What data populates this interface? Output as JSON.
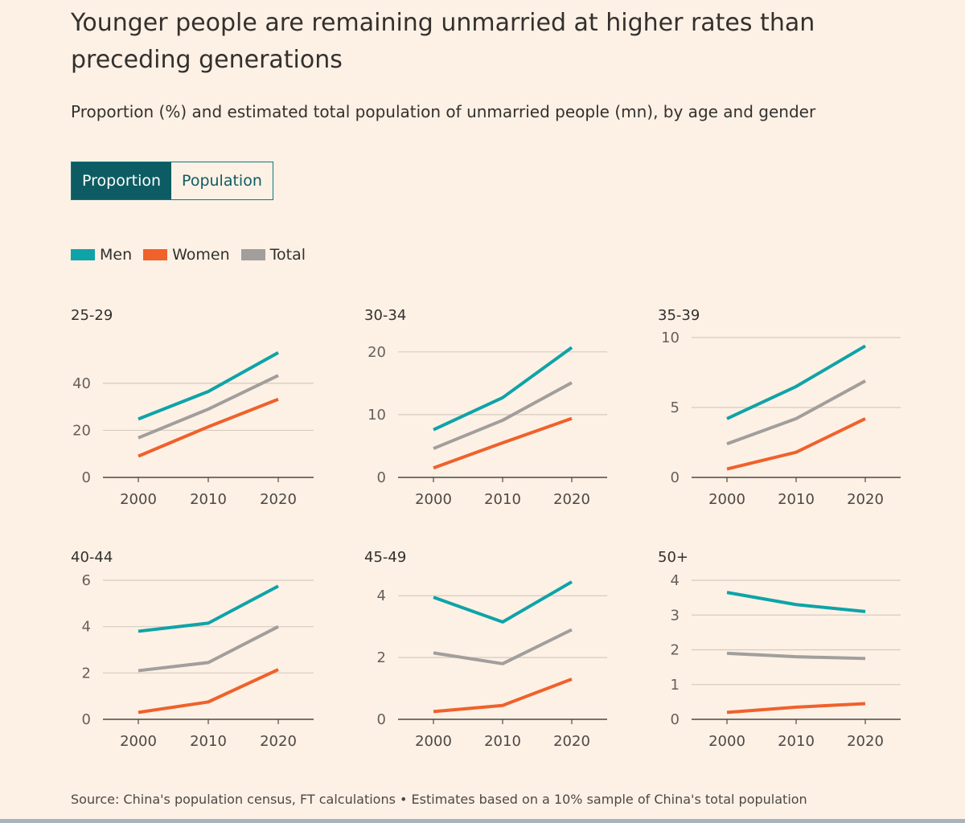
{
  "title": "Younger people are remaining unmarried at higher rates than preceding generations",
  "subtitle": "Proportion (%) and estimated total population of unmarried people (mn), by age and gender",
  "toggle": {
    "active": "Proportion",
    "options": [
      "Proportion",
      "Population"
    ]
  },
  "legend": [
    {
      "label": "Men",
      "color": "#0fa3a8"
    },
    {
      "label": "Women",
      "color": "#f0612b"
    },
    {
      "label": "Total",
      "color": "#a19e9c"
    }
  ],
  "source": "Source: China's population census, FT calculations • Estimates based on a 10% sample of China's total population",
  "chart_data": [
    {
      "type": "line",
      "title": "25-29",
      "x": [
        "2000",
        "2010",
        "2020"
      ],
      "ylim": [
        0,
        56
      ],
      "yticks": [
        0,
        20,
        40
      ],
      "series": [
        {
          "name": "Men",
          "values": [
            24.8,
            36.5,
            53
          ]
        },
        {
          "name": "Women",
          "values": [
            9,
            21.5,
            33.2
          ]
        },
        {
          "name": "Total",
          "values": [
            16.8,
            29,
            43.3
          ]
        }
      ]
    },
    {
      "type": "line",
      "title": "30-34",
      "x": [
        "2000",
        "2010",
        "2020"
      ],
      "ylim": [
        0,
        21
      ],
      "yticks": [
        0,
        10,
        20
      ],
      "series": [
        {
          "name": "Men",
          "values": [
            7.6,
            12.7,
            20.7
          ]
        },
        {
          "name": "Women",
          "values": [
            1.5,
            5.5,
            9.4
          ]
        },
        {
          "name": "Total",
          "values": [
            4.6,
            9.1,
            15.1
          ]
        }
      ]
    },
    {
      "type": "line",
      "title": "35-39",
      "x": [
        "2000",
        "2010",
        "2020"
      ],
      "ylim": [
        0,
        10
      ],
      "yticks": [
        0,
        5,
        10
      ],
      "series": [
        {
          "name": "Men",
          "values": [
            4.2,
            6.5,
            9.4
          ]
        },
        {
          "name": "Women",
          "values": [
            0.6,
            1.8,
            4.2
          ]
        },
        {
          "name": "Total",
          "values": [
            2.4,
            4.2,
            6.9
          ]
        }
      ]
    },
    {
      "type": "line",
      "title": "40-44",
      "x": [
        "2000",
        "2010",
        "2020"
      ],
      "ylim": [
        0,
        6
      ],
      "yticks": [
        0,
        2,
        4,
        6
      ],
      "series": [
        {
          "name": "Men",
          "values": [
            3.8,
            4.15,
            5.75
          ]
        },
        {
          "name": "Women",
          "values": [
            0.3,
            0.75,
            2.15
          ]
        },
        {
          "name": "Total",
          "values": [
            2.1,
            2.45,
            4
          ]
        }
      ]
    },
    {
      "type": "line",
      "title": "45-49",
      "x": [
        "2000",
        "2010",
        "2020"
      ],
      "ylim": [
        0,
        4.5
      ],
      "yticks": [
        0,
        2,
        4
      ],
      "series": [
        {
          "name": "Men",
          "values": [
            3.95,
            3.15,
            4.45
          ]
        },
        {
          "name": "Women",
          "values": [
            0.25,
            0.45,
            1.3
          ]
        },
        {
          "name": "Total",
          "values": [
            2.15,
            1.8,
            2.9
          ]
        }
      ]
    },
    {
      "type": "line",
      "title": "50+",
      "x": [
        "2000",
        "2010",
        "2020"
      ],
      "ylim": [
        0,
        4
      ],
      "yticks": [
        0,
        1,
        2,
        3,
        4
      ],
      "series": [
        {
          "name": "Men",
          "values": [
            3.65,
            3.3,
            3.1
          ]
        },
        {
          "name": "Women",
          "values": [
            0.2,
            0.35,
            0.45
          ]
        },
        {
          "name": "Total",
          "values": [
            1.9,
            1.8,
            1.75
          ]
        }
      ]
    }
  ]
}
